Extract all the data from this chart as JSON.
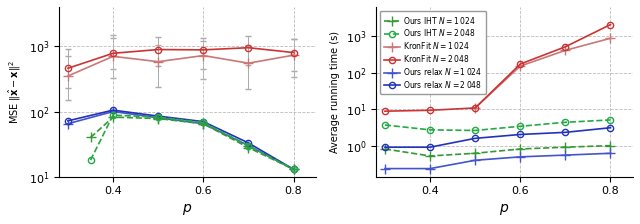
{
  "left": {
    "xlabel": "$p$",
    "ylabel": "MSE $\\|\\hat{\\mathbf{x}} - \\mathbf{x}\\|^2$",
    "ylim": [
      10,
      4000
    ],
    "xlim": [
      0.28,
      0.85
    ],
    "xticks": [
      0.4,
      0.6,
      0.8
    ],
    "series": {
      "kronfit_1024": {
        "x": [
          0.3,
          0.4,
          0.5,
          0.6,
          0.7,
          0.8
        ],
        "y": [
          350,
          700,
          580,
          720,
          550,
          730
        ],
        "yerr_low": [
          150,
          330,
          240,
          320,
          220,
          340
        ],
        "yerr_high": [
          700,
          1350,
          1050,
          1200,
          1050,
          1300
        ],
        "color": "#cc7777",
        "marker": "+",
        "linestyle": "-",
        "label": "KronFit $N = 1\\,024$"
      },
      "kronfit_2048": {
        "x": [
          0.3,
          0.4,
          0.5,
          0.6,
          0.7,
          0.8
        ],
        "y": [
          460,
          780,
          890,
          880,
          950,
          800
        ],
        "yerr_low": [
          230,
          450,
          500,
          450,
          520,
          420
        ],
        "yerr_high": [
          900,
          1500,
          1400,
          1350,
          1450,
          1300
        ],
        "color": "#cc3333",
        "marker": "o",
        "linestyle": "-",
        "label": "KronFit $N = 2\\,048$"
      },
      "ours_relax_1024": {
        "x": [
          0.3,
          0.4,
          0.5,
          0.6,
          0.7,
          0.8
        ],
        "y": [
          65,
          100,
          80,
          65,
          30,
          13
        ],
        "color": "#4455cc",
        "marker": "+",
        "linestyle": "-",
        "label": "Ours relax $N = 1\\,024$"
      },
      "ours_relax_2048": {
        "x": [
          0.3,
          0.4,
          0.5,
          0.6,
          0.7,
          0.8
        ],
        "y": [
          72,
          105,
          85,
          70,
          33,
          13
        ],
        "color": "#2233bb",
        "marker": "o",
        "linestyle": "-",
        "label": "Ours relax $N = 2\\,048$"
      },
      "ours_iht_1024": {
        "x": [
          0.35,
          0.4,
          0.5,
          0.6,
          0.7,
          0.8
        ],
        "y": [
          40,
          82,
          78,
          65,
          28,
          13
        ],
        "color": "#339933",
        "marker": "+",
        "linestyle": "--",
        "label": "Ours IHT $N = 1\\,024$"
      },
      "ours_iht_2048": {
        "x": [
          0.35,
          0.4,
          0.5,
          0.6,
          0.7,
          0.8
        ],
        "y": [
          18,
          88,
          82,
          68,
          30,
          13
        ],
        "color": "#22aa44",
        "marker": "o",
        "linestyle": "--",
        "label": "Ours IHT $N = 2\\,048$"
      }
    }
  },
  "right": {
    "xlabel": "$p$",
    "ylabel": "Average running time (s)",
    "ylim": [
      0.15,
      6000
    ],
    "xlim": [
      0.28,
      0.85
    ],
    "xticks": [
      0.4,
      0.6,
      0.8
    ],
    "series": {
      "ours_iht_1024": {
        "x": [
          0.3,
          0.4,
          0.5,
          0.6,
          0.7,
          0.8
        ],
        "y": [
          0.85,
          0.55,
          0.65,
          0.85,
          0.95,
          1.05
        ],
        "color": "#339933",
        "marker": "+",
        "linestyle": "--",
        "label": "Ours IHT $N = 1\\,024$"
      },
      "ours_iht_2048": {
        "x": [
          0.3,
          0.4,
          0.5,
          0.6,
          0.7,
          0.8
        ],
        "y": [
          3.8,
          2.8,
          2.7,
          3.5,
          4.5,
          5.2
        ],
        "color": "#22aa44",
        "marker": "o",
        "linestyle": "--",
        "label": "Ours IHT $N = 2\\,048$"
      },
      "kronfit_1024": {
        "x": [
          0.5,
          0.6,
          0.7,
          0.8
        ],
        "y": [
          11.0,
          150,
          400,
          850
        ],
        "color": "#cc7777",
        "marker": "+",
        "linestyle": "-",
        "label": "KronFit $N = 1\\,024$"
      },
      "kronfit_2048": {
        "x": [
          0.3,
          0.4,
          0.5,
          0.6,
          0.7,
          0.8
        ],
        "y": [
          9.0,
          9.5,
          11.0,
          170,
          500,
          2000
        ],
        "color": "#cc3333",
        "marker": "o",
        "linestyle": "-",
        "label": "KronFit $N = 2\\,048$"
      },
      "ours_relax_1024": {
        "x": [
          0.3,
          0.4,
          0.5,
          0.6,
          0.7,
          0.8
        ],
        "y": [
          0.25,
          0.25,
          0.42,
          0.52,
          0.58,
          0.65
        ],
        "color": "#4455cc",
        "marker": "+",
        "linestyle": "-",
        "label": "Ours relax $N = 1\\,024$"
      },
      "ours_relax_2048": {
        "x": [
          0.3,
          0.4,
          0.5,
          0.6,
          0.7,
          0.8
        ],
        "y": [
          0.95,
          0.95,
          1.65,
          2.1,
          2.4,
          3.2
        ],
        "color": "#2233bb",
        "marker": "o",
        "linestyle": "-",
        "label": "Ours relax $N = 2\\,048$"
      }
    }
  },
  "bg_color": "#ffffff"
}
